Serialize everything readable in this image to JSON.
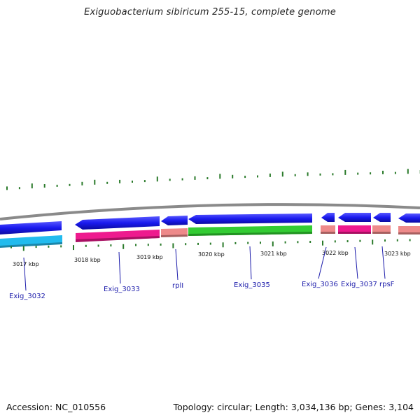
{
  "title": "Exiguobacterium sibiricum 255-15, complete genome",
  "footer": {
    "accession": "Accession: NC_010556",
    "topology": "Topology: circular; Length: 3,034,136 bp; Genes: 3,104"
  },
  "scale_labels": [
    "3017 kbp",
    "3018 kbp",
    "3019 kbp",
    "3020 kbp",
    "3021 kbp",
    "3022 kbp",
    "3023 kbp"
  ],
  "gene_labels": [
    "Exig_3032",
    "Exig_3033",
    "rplI",
    "Exig_3035",
    "Exig_3036",
    "Exig_3037",
    "rpsF"
  ],
  "colors": {
    "backbone": "#8a8a8a",
    "strand_arrow": "#1a1aee",
    "cds_pink": "#ee1a8e",
    "cds_salmon": "#ee8a8a",
    "cds_green": "#33cc33",
    "cds_cyan": "#22bbee",
    "gc_skew_tick": "#2a7a2a",
    "label_blue": "#1a1aaa"
  }
}
